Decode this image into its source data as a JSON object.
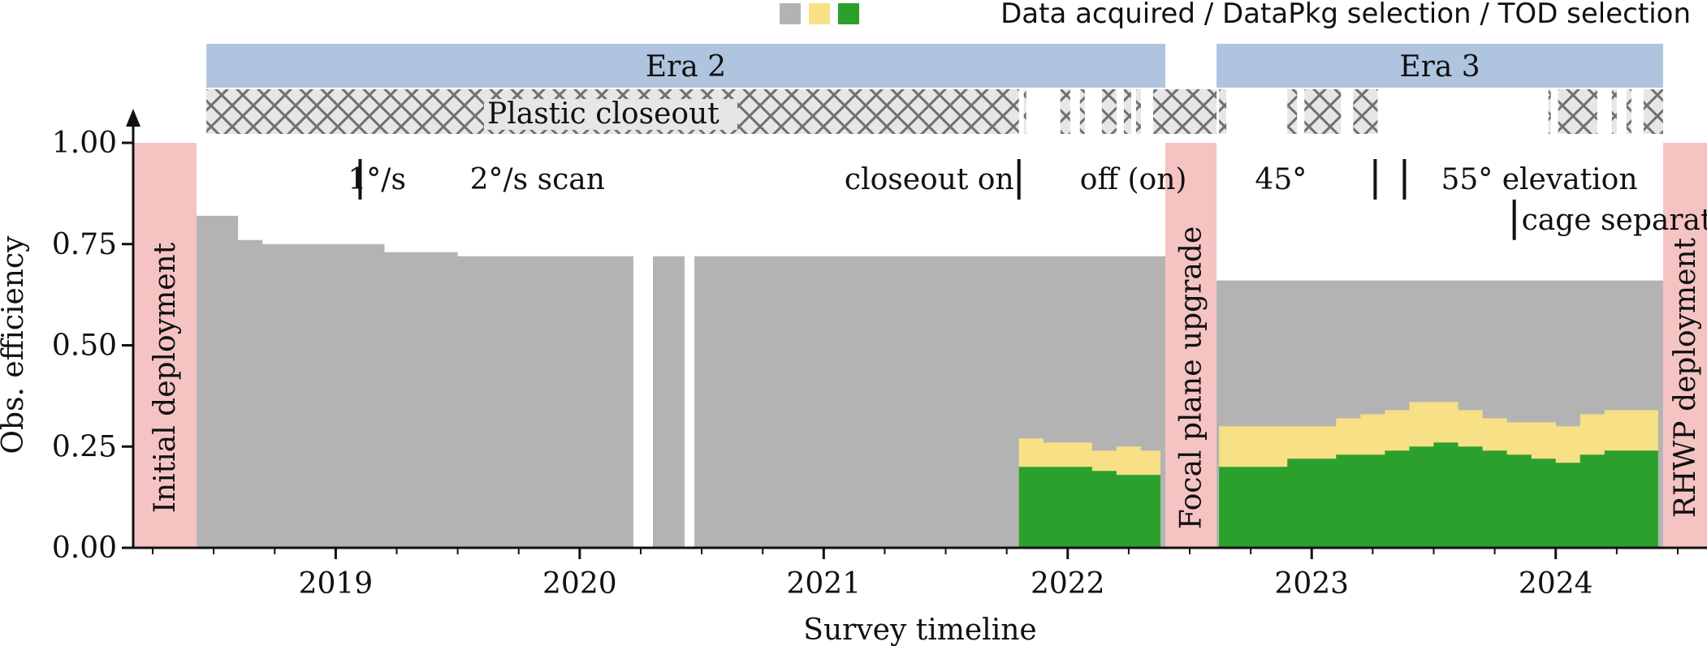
{
  "chart_data": {
    "type": "area",
    "xlabel": "Survey timeline",
    "ylabel": "Obs. efficiency",
    "xlim": [
      2018.17,
      2024.62
    ],
    "ylim": [
      0.0,
      1.0
    ],
    "x_ticks": [
      2019,
      2020,
      2021,
      2022,
      2023,
      2024
    ],
    "y_ticks": [
      "0.00",
      "0.25",
      "0.50",
      "0.75",
      "1.00"
    ],
    "legend": {
      "text": "Data acquired / DataPkg selection / TOD selection",
      "colors": [
        "#b3b3b3",
        "#f7e085",
        "#2ca02c"
      ],
      "position": "top-right"
    },
    "eras": [
      {
        "label": "Era 2",
        "start": 2018.47,
        "end": 2022.4
      },
      {
        "label": "Era 3",
        "start": 2022.61,
        "end": 2024.44
      }
    ],
    "closeout_label": "Plastic closeout",
    "closeout_segments": [
      [
        2018.47,
        2021.8
      ],
      [
        2021.82,
        2021.83
      ],
      [
        2021.97,
        2022.01
      ],
      [
        2022.05,
        2022.07
      ],
      [
        2022.14,
        2022.2
      ],
      [
        2022.23,
        2022.26
      ],
      [
        2022.28,
        2022.3
      ],
      [
        2022.35,
        2022.61
      ],
      [
        2022.62,
        2022.65
      ],
      [
        2022.9,
        2022.94
      ],
      [
        2022.97,
        2023.12
      ],
      [
        2023.17,
        2023.27
      ],
      [
        2023.97,
        2023.98
      ],
      [
        2024.01,
        2024.17
      ],
      [
        2024.23,
        2024.25
      ],
      [
        2024.29,
        2024.31
      ],
      [
        2024.36,
        2024.44
      ]
    ],
    "shaded_regions": [
      {
        "label": "Initial deployment",
        "start": 2018.17,
        "end": 2018.43
      },
      {
        "label": "Focal plane upgrade",
        "start": 2022.4,
        "end": 2022.61
      },
      {
        "label": "RHWP deployment",
        "start": 2024.44,
        "end": 2024.62
      }
    ],
    "annotations": [
      {
        "text": "1°/s",
        "x": 2019.05,
        "y": 0.91
      },
      {
        "text": "2°/s scan",
        "x": 2019.55,
        "y": 0.91
      },
      {
        "text": "closeout on",
        "x": 2021.78,
        "y": 0.91
      },
      {
        "text": "off (on)",
        "x": 2022.05,
        "y": 0.91
      },
      {
        "text": "45°",
        "x": 2022.98,
        "y": 0.91
      },
      {
        "text": "55° elevation",
        "x": 2023.53,
        "y": 0.91
      },
      {
        "text": "cage separator",
        "x": 2023.86,
        "y": 0.81
      }
    ],
    "annotation_markers": [
      2019.1,
      2021.8,
      2023.26,
      2023.38
    ],
    "series": [
      {
        "name": "Data acquired",
        "color": "#b3b3b3",
        "x": [
          2018.43,
          2018.5,
          2018.6,
          2018.7,
          2018.9,
          2019.2,
          2019.5,
          2019.7,
          2020.0,
          2020.22,
          2020.3,
          2020.43,
          2020.47,
          2020.6,
          2021.0,
          2021.5,
          2021.8,
          2022.0,
          2022.3,
          2022.4,
          2022.61,
          2023.0,
          2023.5,
          2024.0,
          2024.44
        ],
        "values": [
          0.82,
          0.82,
          0.76,
          0.75,
          0.75,
          0.73,
          0.72,
          0.72,
          0.72,
          0.72,
          0.72,
          0.72,
          0.72,
          0.72,
          0.72,
          0.72,
          0.72,
          0.72,
          0.72,
          0.72,
          0.66,
          0.66,
          0.66,
          0.66,
          0.66
        ]
      },
      {
        "name": "DataPkg selection",
        "color": "#f7e085",
        "x": [
          2021.8,
          2021.9,
          2022.0,
          2022.1,
          2022.2,
          2022.3,
          2022.38,
          2022.62,
          2022.75,
          2022.9,
          2023.0,
          2023.1,
          2023.2,
          2023.3,
          2023.4,
          2023.5,
          2023.6,
          2023.7,
          2023.8,
          2023.9,
          2024.0,
          2024.1,
          2024.2,
          2024.3,
          2024.42
        ],
        "values": [
          0.27,
          0.26,
          0.26,
          0.24,
          0.25,
          0.24,
          0.27,
          0.3,
          0.3,
          0.3,
          0.3,
          0.32,
          0.33,
          0.34,
          0.36,
          0.36,
          0.34,
          0.32,
          0.31,
          0.31,
          0.3,
          0.33,
          0.34,
          0.34,
          0.33
        ]
      },
      {
        "name": "TOD selection",
        "color": "#2ca02c",
        "x": [
          2021.8,
          2021.9,
          2022.0,
          2022.1,
          2022.2,
          2022.3,
          2022.38,
          2022.62,
          2022.75,
          2022.9,
          2023.0,
          2023.1,
          2023.2,
          2023.3,
          2023.4,
          2023.5,
          2023.6,
          2023.7,
          2023.8,
          2023.9,
          2024.0,
          2024.1,
          2024.2,
          2024.3,
          2024.42
        ],
        "values": [
          0.2,
          0.2,
          0.2,
          0.19,
          0.18,
          0.18,
          0.2,
          0.2,
          0.2,
          0.22,
          0.22,
          0.23,
          0.23,
          0.24,
          0.25,
          0.26,
          0.25,
          0.24,
          0.23,
          0.22,
          0.21,
          0.23,
          0.24,
          0.24,
          0.23
        ]
      }
    ]
  }
}
